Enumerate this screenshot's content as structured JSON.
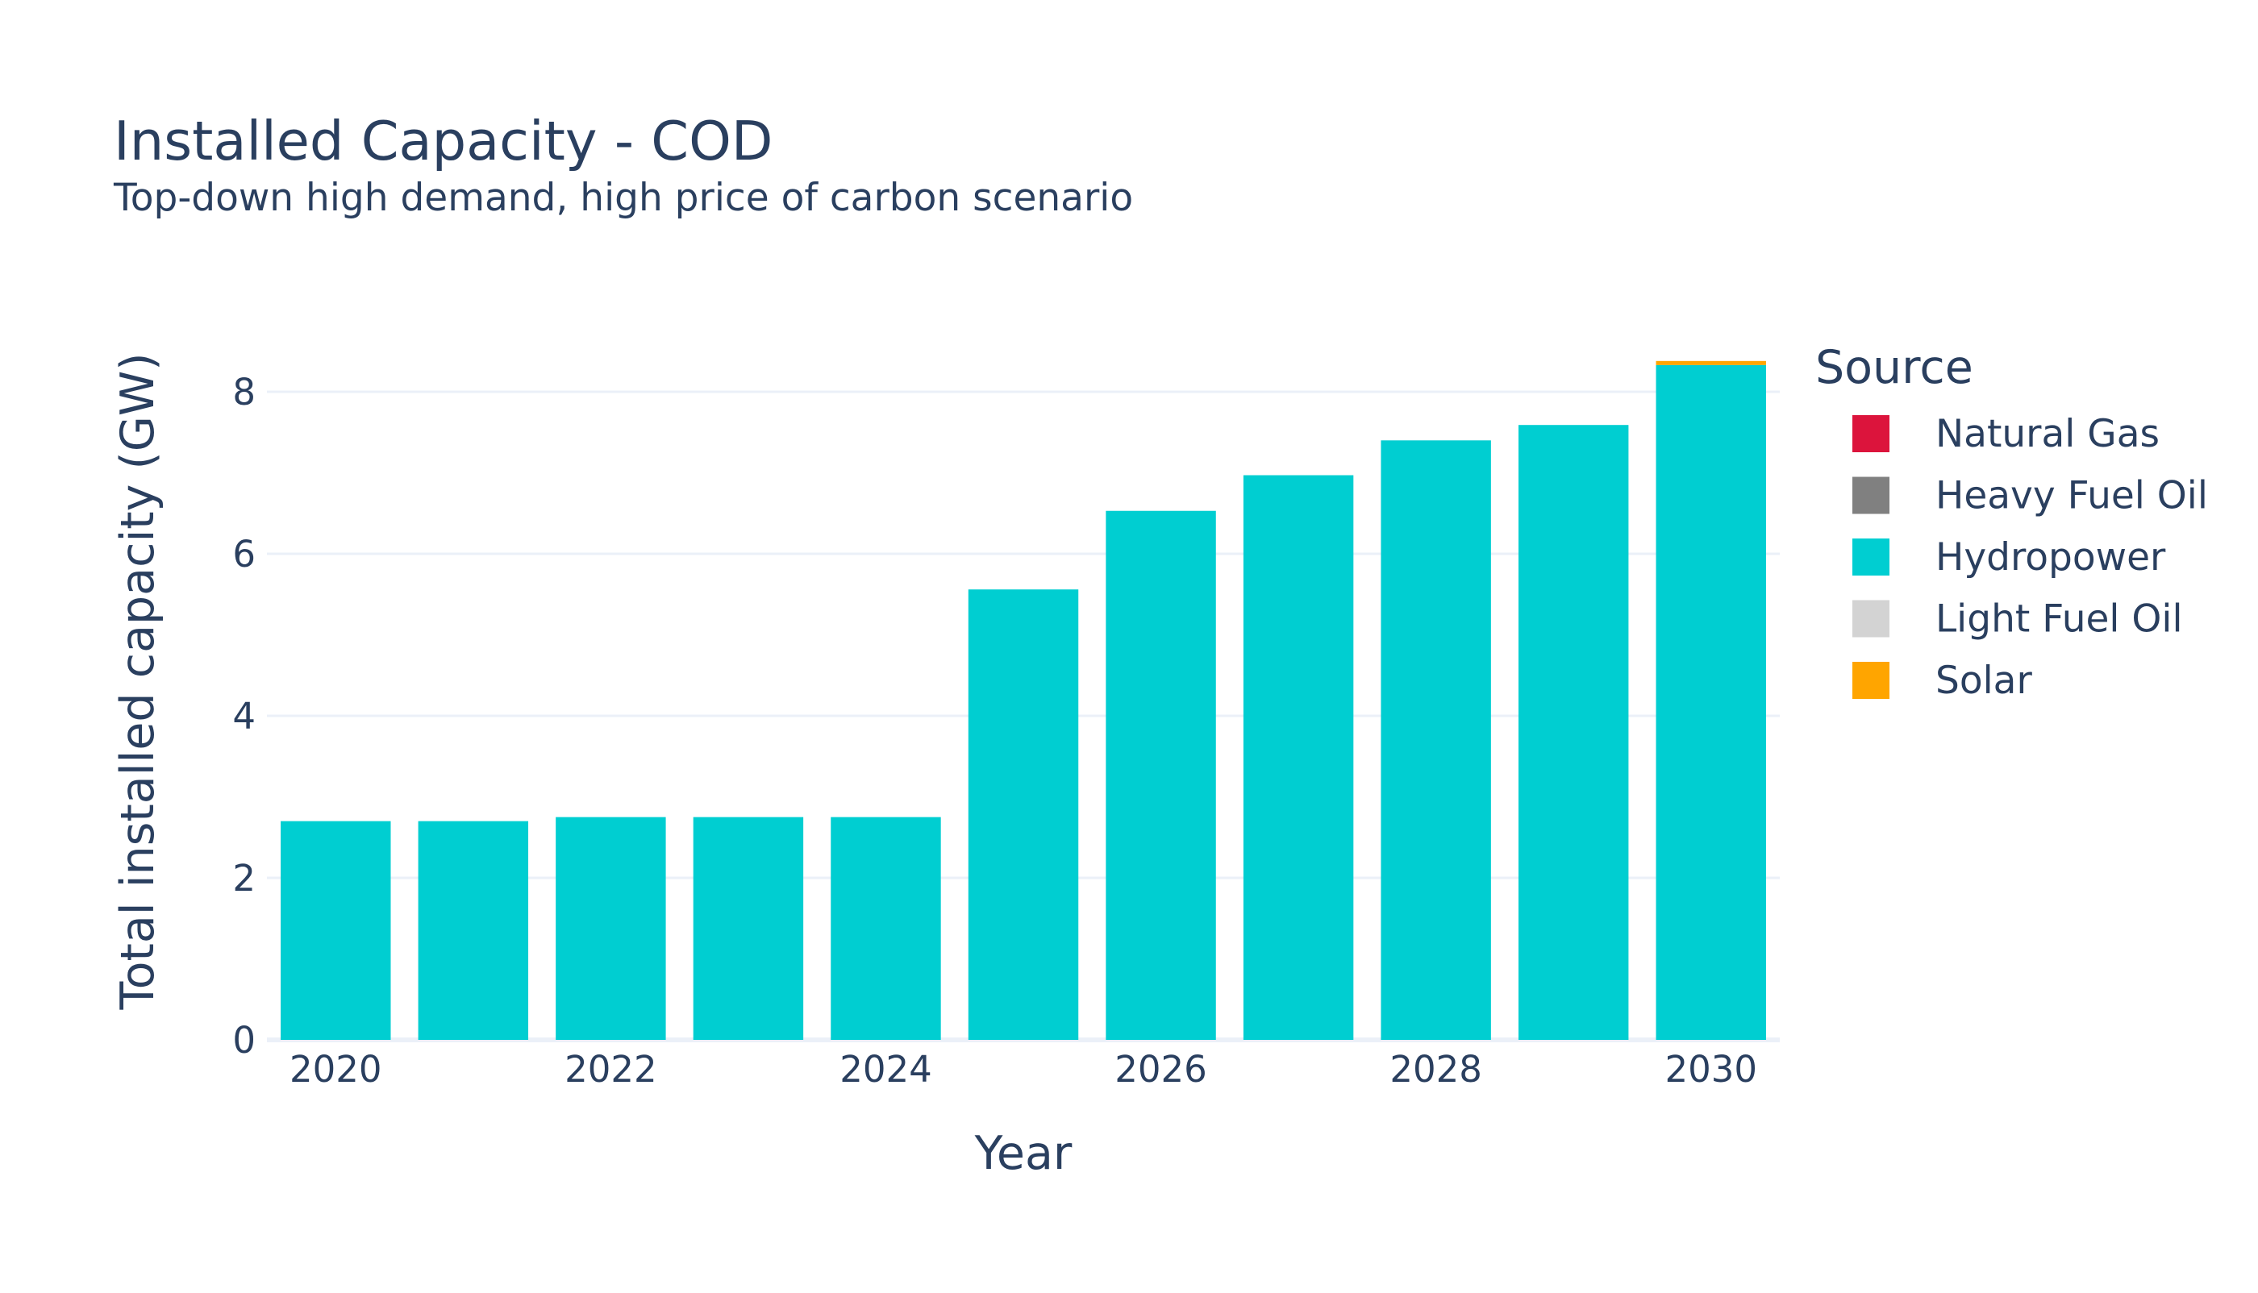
{
  "chart_data": {
    "type": "bar",
    "title": "Installed Capacity - COD",
    "subtitle": "Top-down high demand, high price of carbon scenario",
    "xlabel": "Year",
    "ylabel": "Total installed capacity (GW)",
    "x": [
      2020,
      2021,
      2022,
      2023,
      2024,
      2025,
      2026,
      2027,
      2028,
      2029,
      2030
    ],
    "x_ticks": [
      "2020",
      "2022",
      "2024",
      "2026",
      "2028",
      "2030"
    ],
    "y_ticks": [
      "0",
      "2",
      "4",
      "6",
      "8"
    ],
    "ylim": [
      0,
      8.8
    ],
    "grid": "horizontal",
    "stacked": true,
    "legend_title": "Source",
    "legend_position": "right",
    "series": [
      {
        "name": "Natural Gas",
        "color": "#dc143c",
        "values": [
          0,
          0,
          0,
          0,
          0,
          0,
          0,
          0,
          0,
          0,
          0
        ]
      },
      {
        "name": "Heavy Fuel Oil",
        "color": "#808080",
        "values": [
          0,
          0,
          0,
          0,
          0,
          0,
          0,
          0,
          0,
          0,
          0
        ]
      },
      {
        "name": "Hydropower",
        "color": "#00ced1",
        "values": [
          2.7,
          2.7,
          2.75,
          2.75,
          2.75,
          5.56,
          6.53,
          6.97,
          7.4,
          7.59,
          8.33
        ]
      },
      {
        "name": "Light Fuel Oil",
        "color": "#d3d3d3",
        "values": [
          0,
          0,
          0,
          0,
          0,
          0,
          0,
          0,
          0,
          0,
          0
        ]
      },
      {
        "name": "Solar",
        "color": "#ffa500",
        "values": [
          0,
          0,
          0,
          0,
          0,
          0,
          0,
          0,
          0,
          0,
          0.05
        ]
      }
    ]
  }
}
